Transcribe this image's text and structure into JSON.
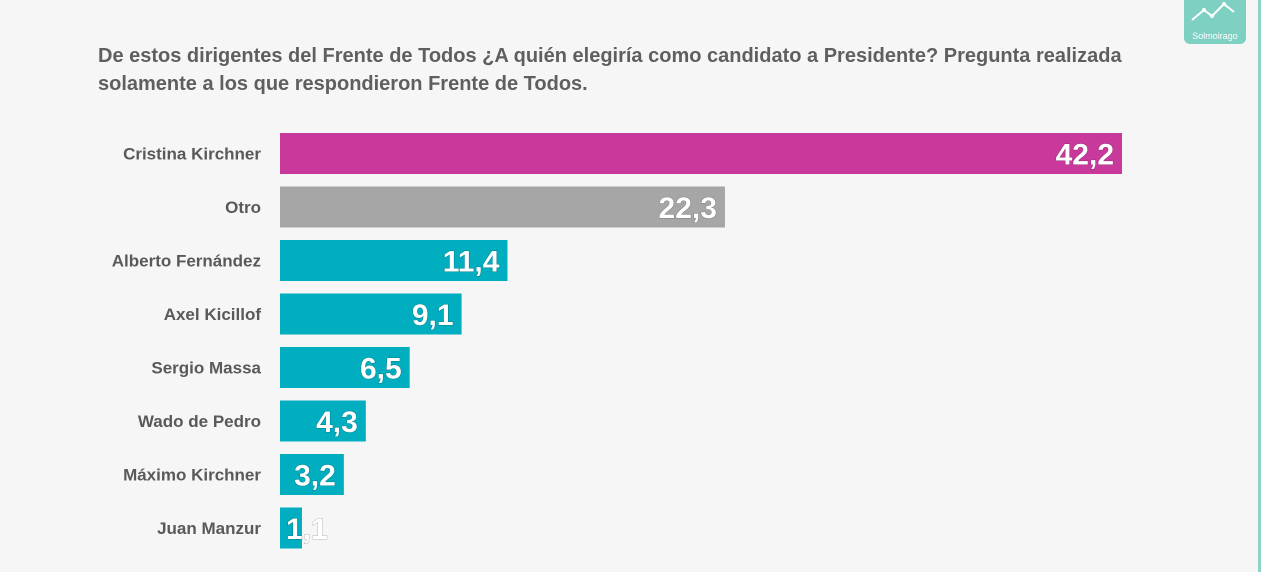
{
  "title": "De estos dirigentes del Frente de Todos ¿A quién elegiría como candidato a Presidente? Pregunta realizada solamente a los que respondieron Frente de Todos.",
  "logo": {
    "text": "Solmoirago",
    "icon": "trend-line-icon"
  },
  "colors": {
    "highlight": "#c8399b",
    "other": "#a6a6a6",
    "default": "#00aebf",
    "background": "#f6f6f6",
    "accent_edge": "#8fd3c8"
  },
  "chart_data": {
    "type": "bar",
    "orientation": "horizontal",
    "categories": [
      "Cristina Kirchner",
      "Otro",
      "Alberto Fernández",
      "Axel Kicillof",
      "Sergio Massa",
      "Wado de Pedro",
      "Máximo Kirchner",
      "Juan Manzur"
    ],
    "values": [
      42.2,
      22.3,
      11.4,
      9.1,
      6.5,
      4.3,
      3.2,
      1.1
    ],
    "value_labels": [
      "42,2",
      "22,3",
      "11,4",
      "9,1",
      "6,5",
      "4,3",
      "3,2",
      "1,1"
    ],
    "bar_colors": [
      "#c8399b",
      "#a6a6a6",
      "#00aebf",
      "#00aebf",
      "#00aebf",
      "#00aebf",
      "#00aebf",
      "#00aebf"
    ],
    "title": "De estos dirigentes del Frente de Todos ¿A quién elegiría como candidato a Presidente? Pregunta realizada solamente a los que respondieron Frente de Todos.",
    "xlabel": "",
    "ylabel": "",
    "xlim": [
      0,
      42.2
    ],
    "grid": false,
    "legend": "none"
  }
}
